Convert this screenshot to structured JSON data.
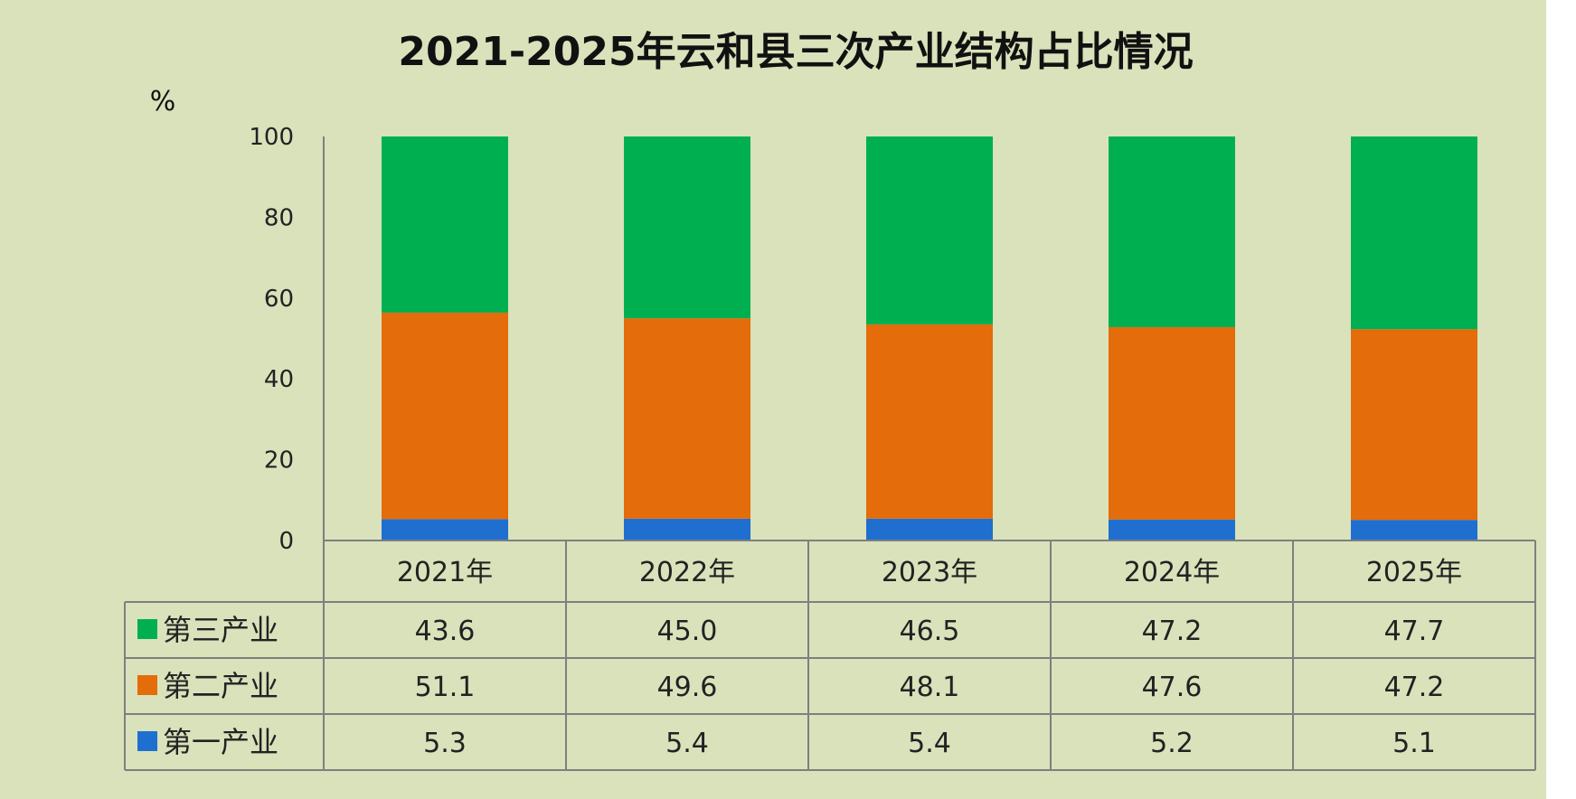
{
  "chart_data": {
    "type": "bar",
    "stacked": true,
    "title": "2021-2025年云和县三次产业结构占比情况",
    "ylabel": "%",
    "ylim": [
      0,
      100
    ],
    "yticks": [
      "0",
      "20",
      "40",
      "60",
      "80",
      "100"
    ],
    "categories": [
      "2021年",
      "2022年",
      "2023年",
      "2024年",
      "2025年"
    ],
    "series": [
      {
        "name": "第一产业",
        "color": "#1f6fd1",
        "values": [
          5.3,
          5.4,
          5.4,
          5.2,
          5.1
        ],
        "labels": [
          "5.3",
          "5.4",
          "5.4",
          "5.2",
          "5.1"
        ]
      },
      {
        "name": "第二产业",
        "color": "#e46c0a",
        "values": [
          51.1,
          49.6,
          48.1,
          47.6,
          47.2
        ],
        "labels": [
          "51.1",
          "49.6",
          "48.1",
          "47.6",
          "47.2"
        ]
      },
      {
        "name": "第三产业",
        "color": "#00b050",
        "values": [
          43.6,
          45.0,
          46.5,
          47.2,
          47.7
        ],
        "labels": [
          "43.6",
          "45.0",
          "46.5",
          "47.2",
          "47.7"
        ]
      }
    ],
    "table_row_order": [
      "第三产业",
      "第二产业",
      "第一产业"
    ],
    "legend": "data-table",
    "grid": false
  }
}
